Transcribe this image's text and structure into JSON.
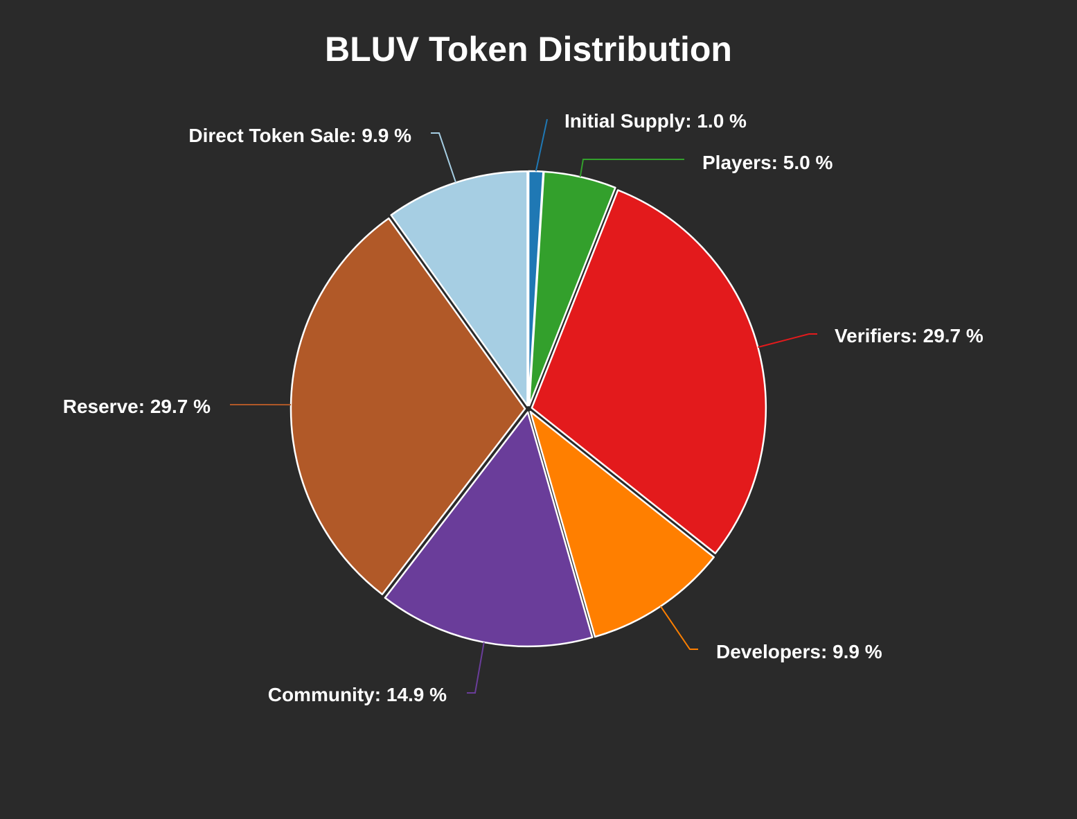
{
  "chart_data": {
    "type": "pie",
    "title": "BLUV Token Distribution",
    "start_angle_deg": 0,
    "direction": "clockwise",
    "slices": [
      {
        "label": "Initial Supply",
        "value": 1.0,
        "display": "Initial Supply: 1.0 %",
        "color": "#1f78b4"
      },
      {
        "label": "Players",
        "value": 5.0,
        "display": "Players: 5.0 %",
        "color": "#33a02c"
      },
      {
        "label": "Verifiers",
        "value": 29.7,
        "display": "Verifiers: 29.7 %",
        "color": "#e31a1c"
      },
      {
        "label": "Developers",
        "value": 9.9,
        "display": "Developers: 9.9 %",
        "color": "#ff7f00"
      },
      {
        "label": "Community",
        "value": 14.9,
        "display": "Community: 14.9 %",
        "color": "#6a3d9a"
      },
      {
        "label": "Reserve",
        "value": 29.7,
        "display": "Reserve: 29.7 %",
        "color": "#b15928"
      },
      {
        "label": "Direct Token Sale",
        "value": 9.9,
        "display": "Direct Token Sale: 9.9 %",
        "color": "#a6cee3"
      }
    ]
  }
}
